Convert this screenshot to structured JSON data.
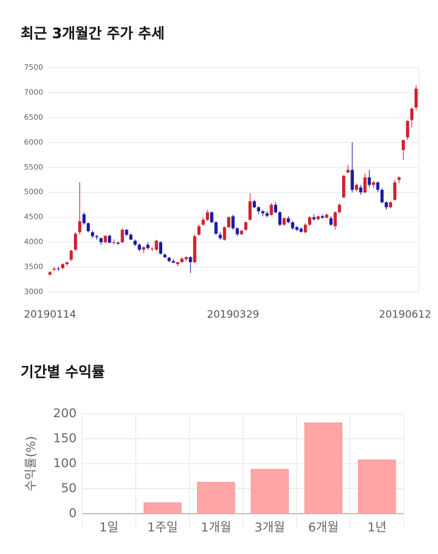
{
  "chart_data": [
    {
      "type": "candlestick",
      "title": "최근 3개월간 주가 추세",
      "categories": [
        "20190114",
        null,
        null,
        null,
        null,
        null,
        null,
        null,
        null,
        null,
        null,
        null,
        null,
        null,
        null,
        null,
        null,
        null,
        null,
        null,
        null,
        null,
        null,
        null,
        null,
        null,
        null,
        null,
        null,
        null,
        null,
        null,
        null,
        null,
        null,
        null,
        null,
        null,
        null,
        null,
        null,
        null,
        null,
        "20190329",
        null,
        null,
        null,
        null,
        null,
        null,
        null,
        null,
        null,
        null,
        null,
        null,
        null,
        null,
        null,
        null,
        null,
        null,
        null,
        null,
        null,
        null,
        null,
        null,
        null,
        null,
        null,
        null,
        null,
        null,
        null,
        null,
        null,
        null,
        null,
        null,
        null,
        null,
        null,
        null,
        null,
        null,
        "20190612"
      ],
      "open": [
        3350,
        3450,
        3470,
        3480,
        3560,
        3650,
        3850,
        4200,
        4560,
        4380,
        4200,
        4120,
        4080,
        4000,
        4130,
        4000,
        3990,
        4000,
        4250,
        4150,
        4030,
        3950,
        3850,
        3950,
        3860,
        3850,
        4000,
        3750,
        3690,
        3620,
        3560,
        3600,
        3660,
        3700,
        3600,
        4150,
        4350,
        4450,
        4600,
        4400,
        4150,
        4050,
        4300,
        4520,
        4280,
        4160,
        4250,
        4450,
        4820,
        4700,
        4620,
        4580,
        4550,
        4750,
        4600,
        4350,
        4480,
        4400,
        4300,
        4270,
        4200,
        4350,
        4500,
        4460,
        4520,
        4490,
        4480,
        4320,
        4600,
        4900,
        5400,
        5450,
        5050,
        5100,
        5000,
        5300,
        5150,
        5200,
        5050,
        4800,
        4700,
        4850,
        5250,
        5850,
        6100,
        6450,
        6700
      ],
      "high": [
        3420,
        3500,
        3510,
        3580,
        3600,
        3850,
        4200,
        5200,
        4600,
        4400,
        4230,
        4150,
        4100,
        4130,
        4150,
        4060,
        4020,
        4280,
        4260,
        4180,
        4050,
        3980,
        3920,
        4000,
        3900,
        4050,
        4020,
        3780,
        3700,
        3660,
        3600,
        3700,
        3720,
        3720,
        4150,
        4350,
        4500,
        4650,
        4620,
        4420,
        4200,
        4320,
        4520,
        4550,
        4300,
        4250,
        4420,
        4980,
        4850,
        4720,
        4650,
        4620,
        4780,
        4800,
        4620,
        4500,
        4520,
        4420,
        4330,
        4300,
        4380,
        4520,
        4560,
        4530,
        4560,
        4580,
        4520,
        4620,
        4780,
        5350,
        5550,
        6000,
        5180,
        5150,
        5380,
        5450,
        5230,
        5220,
        5080,
        4820,
        4820,
        5250,
        5320,
        6050,
        6450,
        6700,
        7150
      ],
      "low": [
        3330,
        3420,
        3430,
        3460,
        3520,
        3620,
        3830,
        4150,
        4350,
        4200,
        4080,
        4050,
        3950,
        3980,
        3980,
        3950,
        3950,
        3980,
        4120,
        4050,
        3920,
        3820,
        3780,
        3850,
        3820,
        3830,
        3750,
        3680,
        3600,
        3580,
        3520,
        3580,
        3620,
        3380,
        3580,
        4130,
        4330,
        4420,
        4380,
        4150,
        4050,
        4030,
        4290,
        4250,
        4120,
        4140,
        4230,
        4430,
        4680,
        4560,
        4520,
        4500,
        4530,
        4580,
        4320,
        4330,
        4380,
        4250,
        4220,
        4190,
        4180,
        4330,
        4430,
        4440,
        4470,
        4480,
        4330,
        4250,
        4580,
        4880,
        5380,
        5000,
        5020,
        4950,
        4980,
        5100,
        5080,
        5000,
        4780,
        4650,
        4680,
        4830,
        5180,
        5650,
        6050,
        6300,
        6650
      ],
      "close": [
        3400,
        3470,
        3460,
        3560,
        3600,
        3830,
        4170,
        4420,
        4380,
        4220,
        4120,
        4100,
        4000,
        4130,
        3990,
        4000,
        3970,
        4250,
        4150,
        4050,
        3950,
        3850,
        3900,
        3880,
        3870,
        4030,
        3770,
        3700,
        3620,
        3590,
        3600,
        3670,
        3700,
        3600,
        4120,
        4320,
        4450,
        4600,
        4400,
        4170,
        4080,
        4300,
        4500,
        4280,
        4160,
        4230,
        4400,
        4820,
        4700,
        4620,
        4580,
        4530,
        4750,
        4600,
        4350,
        4480,
        4400,
        4280,
        4250,
        4210,
        4350,
        4500,
        4460,
        4520,
        4490,
        4550,
        4350,
        4600,
        4750,
        5330,
        5450,
        5050,
        5150,
        5000,
        5300,
        5150,
        5200,
        5050,
        4800,
        4700,
        4800,
        5200,
        5300,
        6050,
        6430,
        6680,
        7080
      ],
      "up_color": "#d0212a",
      "down_color": "#1a1aa6",
      "ylim": [
        3000,
        7500
      ],
      "yticks": [
        3000,
        3500,
        4000,
        4500,
        5000,
        5500,
        6000,
        6500,
        7000,
        7500
      ],
      "grid": true
    },
    {
      "type": "bar",
      "title": "기간별 수익률",
      "y_label": "수익률(%)",
      "categories": [
        "1일",
        "1주일",
        "1개월",
        "3개월",
        "6개월",
        "1년"
      ],
      "values": [
        0,
        22,
        63,
        89,
        182,
        108
      ],
      "color": "#ffa5a5",
      "ylim": [
        0,
        200
      ],
      "yticks": [
        0,
        50,
        100,
        150,
        200
      ],
      "grid": true
    }
  ]
}
